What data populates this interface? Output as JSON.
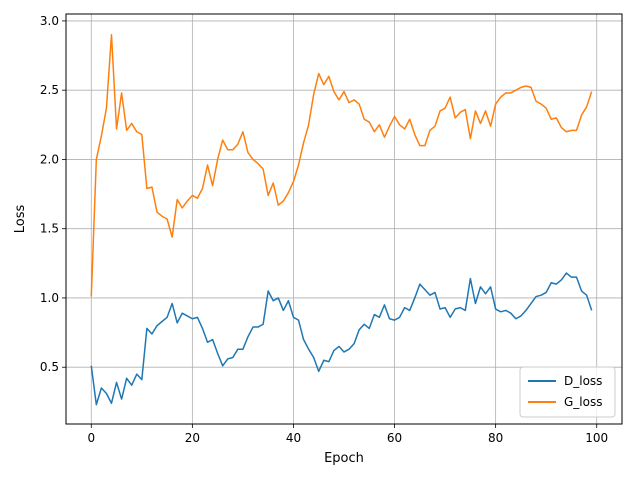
{
  "chart_data": {
    "type": "line",
    "title": "",
    "xlabel": "Epoch",
    "ylabel": "Loss",
    "xlim": [
      -5,
      105
    ],
    "ylim": [
      0.09,
      3.05
    ],
    "grid": true,
    "legend_position": "lower-right",
    "x_ticks": [
      0,
      20,
      40,
      60,
      80,
      100
    ],
    "x_tick_labels": [
      "0",
      "20",
      "40",
      "60",
      "80",
      "100"
    ],
    "y_ticks": [
      0.5,
      1.0,
      1.5,
      2.0,
      2.5,
      3.0
    ],
    "y_tick_labels": [
      "0.5",
      "1.0",
      "1.5",
      "2.0",
      "2.5",
      "3.0"
    ],
    "x": [
      0,
      1,
      2,
      3,
      4,
      5,
      6,
      7,
      8,
      9,
      10,
      11,
      12,
      13,
      14,
      15,
      16,
      17,
      18,
      19,
      20,
      21,
      22,
      23,
      24,
      25,
      26,
      27,
      28,
      29,
      30,
      31,
      32,
      33,
      34,
      35,
      36,
      37,
      38,
      39,
      40,
      41,
      42,
      43,
      44,
      45,
      46,
      47,
      48,
      49,
      50,
      51,
      52,
      53,
      54,
      55,
      56,
      57,
      58,
      59,
      60,
      61,
      62,
      63,
      64,
      65,
      66,
      67,
      68,
      69,
      70,
      71,
      72,
      73,
      74,
      75,
      76,
      77,
      78,
      79,
      80,
      81,
      82,
      83,
      84,
      85,
      86,
      87,
      88,
      89,
      90,
      91,
      92,
      93,
      94,
      95,
      96,
      97,
      98,
      99
    ],
    "series": [
      {
        "name": "D_loss",
        "color": "#1f77b4",
        "values": [
          0.51,
          0.23,
          0.35,
          0.31,
          0.24,
          0.39,
          0.27,
          0.42,
          0.37,
          0.45,
          0.41,
          0.78,
          0.74,
          0.8,
          0.83,
          0.86,
          0.96,
          0.82,
          0.89,
          0.87,
          0.85,
          0.86,
          0.78,
          0.68,
          0.7,
          0.6,
          0.51,
          0.56,
          0.57,
          0.63,
          0.63,
          0.72,
          0.79,
          0.79,
          0.81,
          1.05,
          0.98,
          1.0,
          0.91,
          0.98,
          0.86,
          0.84,
          0.7,
          0.63,
          0.57,
          0.47,
          0.55,
          0.54,
          0.62,
          0.65,
          0.61,
          0.63,
          0.67,
          0.77,
          0.81,
          0.78,
          0.88,
          0.86,
          0.95,
          0.85,
          0.84,
          0.86,
          0.93,
          0.91,
          1.0,
          1.1,
          1.06,
          1.02,
          1.04,
          0.92,
          0.93,
          0.86,
          0.92,
          0.93,
          0.91,
          1.14,
          0.96,
          1.08,
          1.03,
          1.08,
          0.92,
          0.9,
          0.91,
          0.89,
          0.85,
          0.87,
          0.91,
          0.96,
          1.01,
          1.02,
          1.04,
          1.11,
          1.1,
          1.13,
          1.18,
          1.15,
          1.15,
          1.05,
          1.02,
          0.91
        ]
      },
      {
        "name": "G_loss",
        "color": "#ff7f0e",
        "values": [
          1.01,
          2.0,
          2.17,
          2.37,
          2.9,
          2.22,
          2.48,
          2.21,
          2.26,
          2.2,
          2.18,
          1.79,
          1.8,
          1.62,
          1.59,
          1.57,
          1.44,
          1.71,
          1.65,
          1.7,
          1.74,
          1.72,
          1.79,
          1.96,
          1.81,
          2.0,
          2.14,
          2.07,
          2.07,
          2.11,
          2.2,
          2.05,
          2.0,
          1.97,
          1.93,
          1.74,
          1.83,
          1.67,
          1.7,
          1.76,
          1.84,
          1.96,
          2.12,
          2.25,
          2.47,
          2.62,
          2.54,
          2.6,
          2.49,
          2.43,
          2.49,
          2.41,
          2.43,
          2.4,
          2.29,
          2.27,
          2.2,
          2.25,
          2.16,
          2.24,
          2.31,
          2.25,
          2.22,
          2.29,
          2.18,
          2.1,
          2.1,
          2.21,
          2.24,
          2.35,
          2.37,
          2.45,
          2.3,
          2.34,
          2.36,
          2.15,
          2.35,
          2.26,
          2.35,
          2.24,
          2.4,
          2.45,
          2.48,
          2.48,
          2.5,
          2.52,
          2.53,
          2.52,
          2.42,
          2.4,
          2.37,
          2.29,
          2.3,
          2.23,
          2.2,
          2.21,
          2.21,
          2.32,
          2.38,
          2.49
        ]
      }
    ]
  }
}
